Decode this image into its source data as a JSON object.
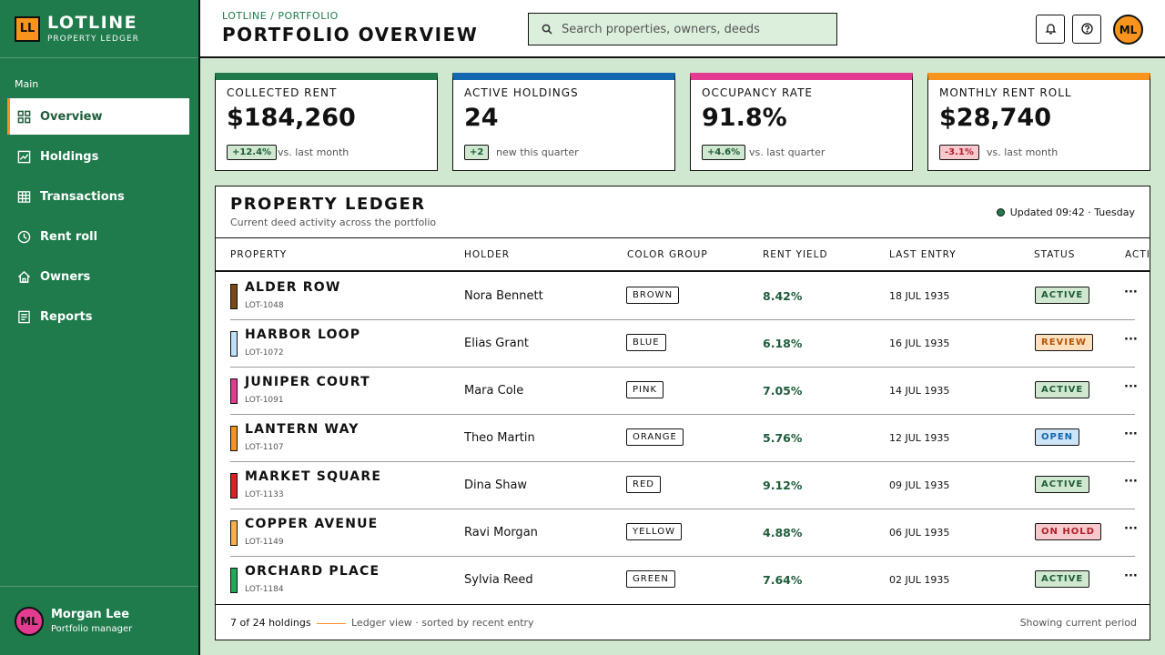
{
  "brand": {
    "logo": "LL",
    "name": "LOTLINE",
    "subtitle": "PROPERTY LEDGER"
  },
  "sidebar": {
    "section": "Main",
    "items": [
      {
        "label": "Overview",
        "icon": "grid-icon",
        "active": true
      },
      {
        "label": "Holdings",
        "icon": "chart-icon"
      },
      {
        "label": "Transactions",
        "icon": "table-icon"
      },
      {
        "label": "Rent roll",
        "icon": "clock-icon"
      },
      {
        "label": "Owners",
        "icon": "home-icon"
      },
      {
        "label": "Reports",
        "icon": "report-icon"
      }
    ],
    "user": {
      "initials": "ML",
      "name": "Morgan Lee",
      "role": "Portfolio manager"
    }
  },
  "header": {
    "breadcrumb": "LOTLINE / PORTFOLIO",
    "title": "PORTFOLIO OVERVIEW",
    "search_placeholder": "Search properties, owners, deeds",
    "avatar": "ML"
  },
  "kpis": [
    {
      "label": "COLLECTED RENT",
      "value": "$184,260",
      "badge": "+12.4%",
      "trend": "up",
      "note": "vs. last month",
      "color": "#1f7a4c"
    },
    {
      "label": "ACTIVE HOLDINGS",
      "value": "24",
      "badge": "+2",
      "trend": "up",
      "note": "new this quarter",
      "color": "#1366b0"
    },
    {
      "label": "OCCUPANCY RATE",
      "value": "91.8%",
      "badge": "+4.6%",
      "trend": "up",
      "note": "vs. last quarter",
      "color": "#e23b8f"
    },
    {
      "label": "MONTHLY RENT ROLL",
      "value": "$28,740",
      "badge": "-3.1%",
      "trend": "down",
      "note": "vs. last month",
      "color": "#f7941d"
    }
  ],
  "ledger": {
    "title": "PROPERTY LEDGER",
    "subtitle": "Current deed activity across the portfolio",
    "updated": "Updated 09:42 · Tuesday",
    "columns": [
      "PROPERTY",
      "HOLDER",
      "COLOR GROUP",
      "RENT YIELD",
      "LAST ENTRY",
      "STATUS",
      "ACTIONS"
    ],
    "rows": [
      {
        "name": "ALDER ROW",
        "lot": "LOT-1048",
        "holder": "Nora Bennett",
        "group": "BROWN",
        "swatch": "#7b4a12",
        "yield": "8.42%",
        "last": "18 JUL 1935",
        "status": "ACTIVE",
        "status_kind": "active"
      },
      {
        "name": "HARBOR LOOP",
        "lot": "LOT-1072",
        "holder": "Elias Grant",
        "group": "BLUE",
        "swatch": "#bfe0f7",
        "yield": "6.18%",
        "last": "16 JUL 1935",
        "status": "REVIEW",
        "status_kind": "review"
      },
      {
        "name": "JUNIPER COURT",
        "lot": "LOT-1091",
        "holder": "Mara Cole",
        "group": "PINK",
        "swatch": "#e23b8f",
        "yield": "7.05%",
        "last": "14 JUL 1935",
        "status": "ACTIVE",
        "status_kind": "active"
      },
      {
        "name": "LANTERN WAY",
        "lot": "LOT-1107",
        "holder": "Theo Martin",
        "group": "ORANGE",
        "swatch": "#f7941d",
        "yield": "5.76%",
        "last": "12 JUL 1935",
        "status": "OPEN",
        "status_kind": "open"
      },
      {
        "name": "MARKET SQUARE",
        "lot": "LOT-1133",
        "holder": "Dina Shaw",
        "group": "RED",
        "swatch": "#e01e26",
        "yield": "9.12%",
        "last": "09 JUL 1935",
        "status": "ACTIVE",
        "status_kind": "active"
      },
      {
        "name": "COPPER AVENUE",
        "lot": "LOT-1149",
        "holder": "Ravi Morgan",
        "group": "YELLOW",
        "swatch": "#f9b04a",
        "yield": "4.88%",
        "last": "06 JUL 1935",
        "status": "ON HOLD",
        "status_kind": "hold"
      },
      {
        "name": "ORCHARD PLACE",
        "lot": "LOT-1184",
        "holder": "Sylvia Reed",
        "group": "GREEN",
        "swatch": "#1faa59",
        "yield": "7.64%",
        "last": "02 JUL 1935",
        "status": "ACTIVE",
        "status_kind": "active"
      }
    ],
    "footer": {
      "count": "7 of 24 holdings",
      "view": "Ledger view · sorted by recent entry",
      "period": "Showing current period"
    },
    "more_glyph": "···"
  }
}
